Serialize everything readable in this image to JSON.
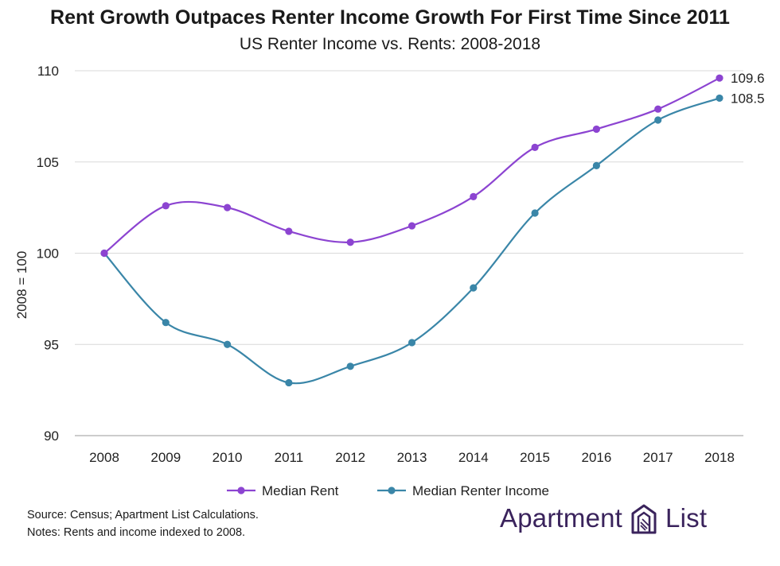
{
  "title": "Rent Growth Outpaces Renter Income Growth For First Time Since 2011",
  "subtitle": "US Renter Income vs. Rents: 2008-2018",
  "chart_data": {
    "type": "line",
    "x": [
      "2008",
      "2009",
      "2010",
      "2011",
      "2012",
      "2013",
      "2014",
      "2015",
      "2016",
      "2017",
      "2018"
    ],
    "ylabel": "2008 = 100",
    "ylim": [
      90,
      110
    ],
    "yticks": [
      "90",
      "95",
      "100",
      "105",
      "110"
    ],
    "grid": true,
    "legend_position": "bottom",
    "series": [
      {
        "name": "Median Rent",
        "color": "#8c44d1",
        "values": [
          100.0,
          102.6,
          102.5,
          101.2,
          100.6,
          101.5,
          103.1,
          105.8,
          106.8,
          107.9,
          109.6
        ],
        "end_label": "109.6"
      },
      {
        "name": "Median Renter Income",
        "color": "#3a86a8",
        "values": [
          100.0,
          96.2,
          95.0,
          92.9,
          93.8,
          95.1,
          98.1,
          102.2,
          104.8,
          107.3,
          108.5
        ],
        "end_label": "108.5"
      }
    ]
  },
  "footer": {
    "source": "Source: Census; Apartment List Calculations.",
    "notes": "Notes: Rents and income indexed to 2008."
  },
  "brand": {
    "word1": "Apartment",
    "word2": "List",
    "color": "#3a235c",
    "logo_icon": "apartment-list-logo-icon"
  }
}
